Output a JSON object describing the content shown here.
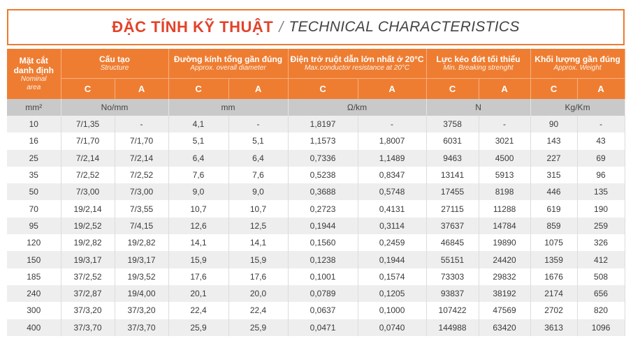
{
  "title": {
    "vn": "ĐẶC TÍNH KỸ THUẬT",
    "separator": "/",
    "en": "TECHNICAL CHARACTERISTICS"
  },
  "headers": {
    "area": {
      "vn": "Mặt cắt danh định",
      "en": "Nominal area"
    },
    "structure": {
      "vn": "Cấu tạo",
      "en": "Structure"
    },
    "diameter": {
      "vn": "Đường kính tổng gần đúng",
      "en": "Approx. overall diameter"
    },
    "resistance": {
      "vn": "Điện trở ruột dẫn lớn nhất ở 20°C",
      "en": "Max.conductor resistance at 20°C"
    },
    "breaking": {
      "vn": "Lực kéo đứt tối thiểu",
      "en": "Min. Breaking strenght"
    },
    "weight": {
      "vn": "Khối lượng gần đúng",
      "en": "Approx. Weight"
    },
    "sub_c": "C",
    "sub_a": "A"
  },
  "units": {
    "area": "mm²",
    "structure": "No/mm",
    "diameter": "mm",
    "resistance": "Ω/km",
    "breaking": "N",
    "weight": "Kg/Km"
  },
  "rows": [
    [
      "10",
      "7/1,35",
      "-",
      "4,1",
      "-",
      "1,8197",
      "-",
      "3758",
      "-",
      "90",
      "-"
    ],
    [
      "16",
      "7/1,70",
      "7/1,70",
      "5,1",
      "5,1",
      "1,1573",
      "1,8007",
      "6031",
      "3021",
      "143",
      "43"
    ],
    [
      "25",
      "7/2,14",
      "7/2,14",
      "6,4",
      "6,4",
      "0,7336",
      "1,1489",
      "9463",
      "4500",
      "227",
      "69"
    ],
    [
      "35",
      "7/2,52",
      "7/2,52",
      "7,6",
      "7,6",
      "0,5238",
      "0,8347",
      "13141",
      "5913",
      "315",
      "96"
    ],
    [
      "50",
      "7/3,00",
      "7/3,00",
      "9,0",
      "9,0",
      "0,3688",
      "0,5748",
      "17455",
      "8198",
      "446",
      "135"
    ],
    [
      "70",
      "19/2,14",
      "7/3,55",
      "10,7",
      "10,7",
      "0,2723",
      "0,4131",
      "27115",
      "11288",
      "619",
      "190"
    ],
    [
      "95",
      "19/2,52",
      "7/4,15",
      "12,6",
      "12,5",
      "0,1944",
      "0,3114",
      "37637",
      "14784",
      "859",
      "259"
    ],
    [
      "120",
      "19/2,82",
      "19/2,82",
      "14,1",
      "14,1",
      "0,1560",
      "0,2459",
      "46845",
      "19890",
      "1075",
      "326"
    ],
    [
      "150",
      "19/3,17",
      "19/3,17",
      "15,9",
      "15,9",
      "0,1238",
      "0,1944",
      "55151",
      "24420",
      "1359",
      "412"
    ],
    [
      "185",
      "37/2,52",
      "19/3,52",
      "17,6",
      "17,6",
      "0,1001",
      "0,1574",
      "73303",
      "29832",
      "1676",
      "508"
    ],
    [
      "240",
      "37/2,87",
      "19/4,00",
      "20,1",
      "20,0",
      "0,0789",
      "0,1205",
      "93837",
      "38192",
      "2174",
      "656"
    ],
    [
      "300",
      "37/3,20",
      "37/3,20",
      "22,4",
      "22,4",
      "0,0637",
      "0,1000",
      "107422",
      "47569",
      "2702",
      "820"
    ],
    [
      "400",
      "37/3,70",
      "37/3,70",
      "25,9",
      "25,9",
      "0,0471",
      "0,0740",
      "144988",
      "63420",
      "3613",
      "1096"
    ]
  ]
}
